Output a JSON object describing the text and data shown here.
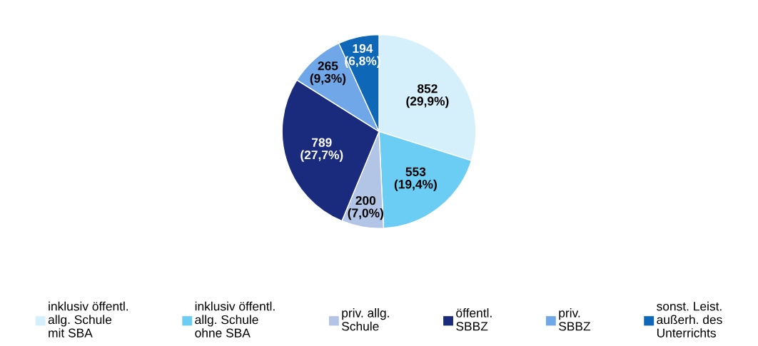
{
  "chart_data": {
    "type": "pie",
    "categories": [
      "inklusiv öffentl.\nallg. Schule\nmit SBA",
      "inklusiv öffentl.\nallg. Schule\nohne SBA",
      "priv. allg.\nSchule",
      "öffentl.\nSBBZ",
      "priv.\nSBBZ",
      "sonst. Leist.\naußerh. des\nUnterrichts"
    ],
    "values": [
      852,
      553,
      200,
      789,
      265,
      194
    ],
    "colors": [
      "#d5effb",
      "#6ccdf4",
      "#b3c5e6",
      "#1a2a7d",
      "#6fa7e9",
      "#0f67b7"
    ],
    "value_labels": [
      "852\n(29,9%)",
      "553\n(19,4%)",
      "200\n(7,0%)",
      "789\n(27,7%)",
      "265\n(9,3%)",
      "194\n(6,8%)"
    ],
    "legend": "bottom"
  }
}
